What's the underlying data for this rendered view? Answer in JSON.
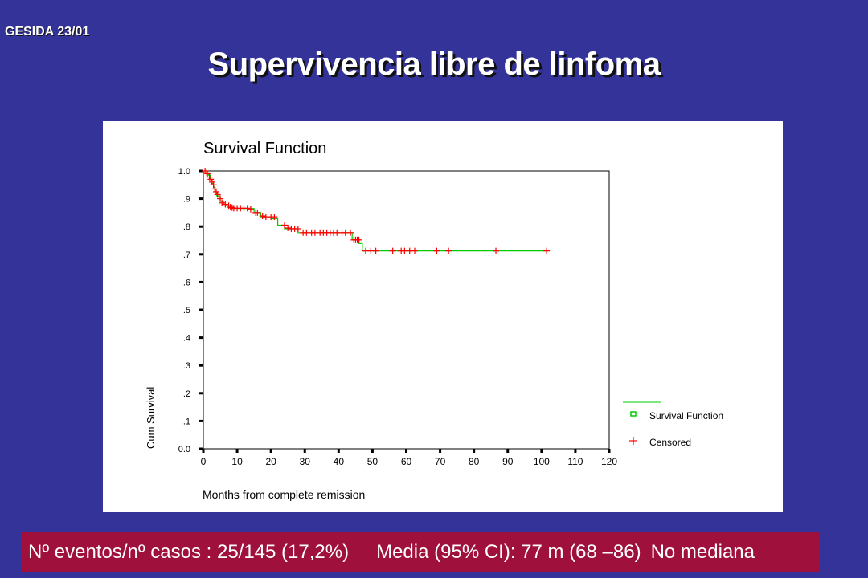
{
  "header": {
    "code": "GESIDA 23/01",
    "title": "Supervivencia libre de linfoma"
  },
  "footer": {
    "events": "Nº eventos/nº casos : 25/145 (17,2%)",
    "mean": "Media (95% CI): 77 m (68 –86)",
    "median": "No mediana"
  },
  "colors": {
    "background": "#333399",
    "footer": "#a0103c",
    "survival_line": "#00cc00",
    "censored": "#ff0000"
  },
  "chart_data": {
    "type": "line",
    "title": "Survival Function",
    "xlabel": "Months from complete remission",
    "ylabel": "Cum Survival",
    "xlim": [
      0,
      120
    ],
    "ylim": [
      0,
      1
    ],
    "x_ticks": [
      "0",
      "10",
      "20",
      "30",
      "40",
      "50",
      "60",
      "70",
      "80",
      "90",
      "100",
      "110",
      "120"
    ],
    "y_ticks": [
      "0.0",
      ".1",
      ".2",
      ".3",
      ".4",
      ".5",
      ".6",
      ".7",
      ".8",
      ".9",
      "1.0"
    ],
    "legend": {
      "position": "right",
      "entries": [
        "Survival Function",
        "Censored"
      ]
    },
    "series": [
      {
        "name": "Survival Function",
        "step_x": [
          0,
          1,
          1.5,
          2,
          2.5,
          3,
          3.5,
          4,
          5,
          6,
          7,
          9,
          15,
          17,
          20,
          22,
          24,
          28,
          44,
          46,
          47,
          102
        ],
        "step_y": [
          1.0,
          0.993,
          0.985,
          0.97,
          0.955,
          0.94,
          0.925,
          0.91,
          0.89,
          0.88,
          0.87,
          0.865,
          0.85,
          0.835,
          0.828,
          0.805,
          0.792,
          0.778,
          0.752,
          0.739,
          0.712,
          0.712
        ]
      },
      {
        "name": "Censored",
        "x": [
          0.5,
          1,
          1.2,
          1.8,
          2.2,
          2.6,
          3,
          3.4,
          3.8,
          4.2,
          5,
          5.5,
          6.5,
          7.5,
          8,
          8.5,
          9,
          10,
          11,
          12,
          13,
          14,
          15.5,
          16,
          17.5,
          18.5,
          20,
          21,
          24,
          25,
          26,
          27,
          28,
          29.5,
          30.5,
          32,
          33,
          34.5,
          35.5,
          36.5,
          37.5,
          38.5,
          39.5,
          41,
          42,
          43.5,
          44.5,
          45,
          45.5,
          46,
          48,
          49.5,
          51,
          56,
          58.5,
          59.5,
          61,
          62.5,
          69,
          72.5,
          86.5,
          101.5
        ],
        "y": [
          1.0,
          0.993,
          0.99,
          0.978,
          0.97,
          0.96,
          0.95,
          0.935,
          0.925,
          0.915,
          0.9,
          0.885,
          0.88,
          0.875,
          0.87,
          0.868,
          0.866,
          0.866,
          0.866,
          0.866,
          0.866,
          0.862,
          0.85,
          0.85,
          0.838,
          0.835,
          0.835,
          0.835,
          0.805,
          0.795,
          0.792,
          0.792,
          0.792,
          0.778,
          0.778,
          0.778,
          0.778,
          0.778,
          0.778,
          0.778,
          0.778,
          0.778,
          0.778,
          0.778,
          0.778,
          0.778,
          0.752,
          0.752,
          0.752,
          0.752,
          0.712,
          0.712,
          0.712,
          0.712,
          0.712,
          0.712,
          0.712,
          0.712,
          0.712,
          0.712,
          0.712,
          0.712
        ]
      }
    ]
  }
}
